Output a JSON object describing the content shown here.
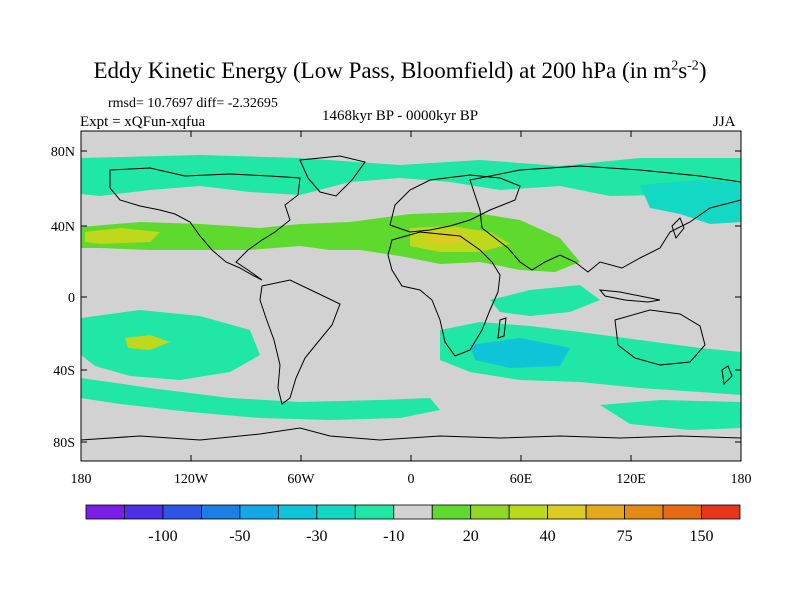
{
  "title": {
    "main": "Eddy Kinetic Energy (Low Pass, Bloomfield) at 200 hPa (in m",
    "sup1": "2",
    "mid": "s",
    "sup2": "-2",
    "end": ")"
  },
  "stats": "rmsd= 10.7697 diff= -2.32695",
  "experiment": "Expt = xQFun-xqfua",
  "period": "1468kyr BP - 0000kyr BP",
  "season": "JJA",
  "axes": {
    "x_ticks": [
      "180",
      "120W",
      "60W",
      "0",
      "60E",
      "120E",
      "180"
    ],
    "y_ticks": [
      "80N",
      "40N",
      "0",
      "40S",
      "80S"
    ]
  },
  "colorbar": {
    "colors": [
      "#7a1ee6",
      "#4f2ee6",
      "#2f55e6",
      "#1c7fe6",
      "#14a8e6",
      "#10c4d8",
      "#13d8c3",
      "#20e6a6",
      "#d2d2d2",
      "#5ed92e",
      "#8fd824",
      "#bfd81c",
      "#dccb24",
      "#e6a91e",
      "#e68a16",
      "#e66a12",
      "#e6361c"
    ],
    "labels": [
      "-100",
      "-50",
      "-30",
      "-10",
      "20",
      "40",
      "75",
      "150"
    ]
  },
  "palette": {
    "neutral": "#d2d2d2",
    "light_green": "#20e6a6",
    "teal": "#13d8c3",
    "cyan": "#10c4d8",
    "green": "#5ed92e",
    "yellow_green": "#bfd81c",
    "orange_yellow": "#dccb24"
  }
}
